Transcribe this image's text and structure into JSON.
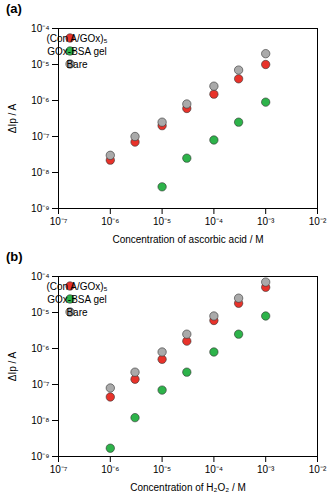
{
  "chart_data": [
    {
      "type": "scatter",
      "title": "(a)",
      "x_label": "Concentration of ascorbic acid / M",
      "y_label": "ΔIp / A",
      "x": [
        1e-06,
        3e-06,
        1e-05,
        3e-05,
        0.0001,
        0.0003,
        0.001
      ],
      "series": [
        {
          "name": "(Con A/GOx)₅",
          "color": "#e8322a",
          "marker": "circle",
          "values": [
            2.2e-08,
            7e-08,
            2e-07,
            6e-07,
            1.5e-06,
            4e-06,
            1e-05
          ]
        },
        {
          "name": "GOx-BSA gel",
          "color": "#2db34a",
          "marker": "circle",
          "values": [
            null,
            null,
            4e-09,
            2.5e-08,
            8e-08,
            2.5e-07,
            9e-07
          ]
        },
        {
          "name": "Bare",
          "color": "#aaaaaa",
          "marker": "circle",
          "values": [
            3e-08,
            1e-07,
            2.5e-07,
            8e-07,
            2.5e-06,
            7e-06,
            2e-05
          ]
        }
      ],
      "log": true,
      "legend": "top-left",
      "xlim": [
        1e-07,
        0.01
      ],
      "ylim": [
        1e-09,
        0.0001
      ],
      "xticks": [
        {
          "value": 1e-07,
          "label": "10⁻⁷"
        },
        {
          "value": 1e-06,
          "label": "10⁻⁶"
        },
        {
          "value": 1e-05,
          "label": "10⁻⁵"
        },
        {
          "value": 0.0001,
          "label": "10⁻⁴"
        },
        {
          "value": 0.001,
          "label": "10⁻³"
        },
        {
          "value": 0.01,
          "label": "10⁻²"
        }
      ],
      "yticks": [
        {
          "value": 1e-09,
          "label": "10⁻⁹"
        },
        {
          "value": 1e-08,
          "label": "10⁻⁸"
        },
        {
          "value": 1e-07,
          "label": "10⁻⁷"
        },
        {
          "value": 1e-06,
          "label": "10⁻⁶"
        },
        {
          "value": 1e-05,
          "label": "10⁻⁵"
        },
        {
          "value": 0.0001,
          "label": "10⁻⁴"
        }
      ]
    },
    {
      "type": "scatter",
      "title": "(b)",
      "x_label": "Concentration of H₂O₂ / M",
      "y_label": "ΔIp / A",
      "x": [
        1e-06,
        3e-06,
        1e-05,
        3e-05,
        0.0001,
        0.0003,
        0.001
      ],
      "series": [
        {
          "name": "(Con A/GOx)₅",
          "color": "#e8322a",
          "marker": "circle",
          "values": [
            4.5e-08,
            1.4e-07,
            5e-07,
            1.6e-06,
            6e-06,
            1.8e-05,
            5e-05
          ]
        },
        {
          "name": "GOx-BSA gel",
          "color": "#2db34a",
          "marker": "circle",
          "values": [
            1.7e-09,
            1.2e-08,
            7e-08,
            2.2e-07,
            8e-07,
            2.5e-06,
            8e-06
          ]
        },
        {
          "name": "Bare",
          "color": "#aaaaaa",
          "marker": "circle",
          "values": [
            8e-08,
            2.2e-07,
            8e-07,
            2.5e-06,
            8e-06,
            2.5e-05,
            7e-05
          ]
        }
      ],
      "log": true,
      "legend": "top-left",
      "xlim": [
        1e-07,
        0.01
      ],
      "ylim": [
        1e-09,
        0.0001
      ],
      "xticks": [
        {
          "value": 1e-07,
          "label": "10⁻⁷"
        },
        {
          "value": 1e-06,
          "label": "10⁻⁶"
        },
        {
          "value": 1e-05,
          "label": "10⁻⁵"
        },
        {
          "value": 0.0001,
          "label": "10⁻⁴"
        },
        {
          "value": 0.001,
          "label": "10⁻³"
        },
        {
          "value": 0.01,
          "label": "10⁻²"
        }
      ],
      "yticks": [
        {
          "value": 1e-09,
          "label": "10⁻⁹"
        },
        {
          "value": 1e-08,
          "label": "10⁻⁸"
        },
        {
          "value": 1e-07,
          "label": "10⁻⁷"
        },
        {
          "value": 1e-06,
          "label": "10⁻⁶"
        },
        {
          "value": 1e-05,
          "label": "10⁻⁵"
        },
        {
          "value": 0.0001,
          "label": "10⁻⁴"
        }
      ]
    }
  ]
}
